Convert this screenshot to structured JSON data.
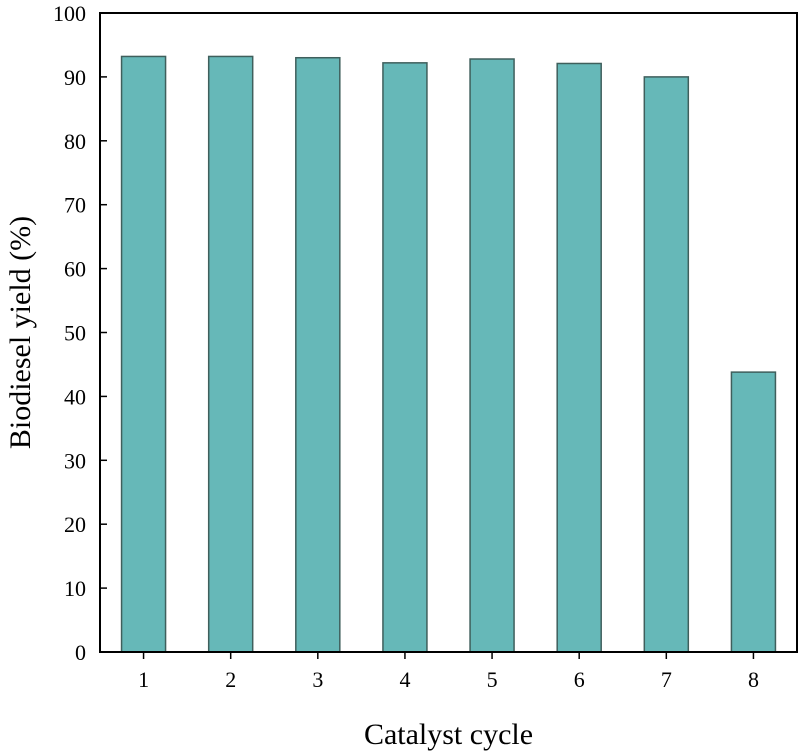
{
  "chart_data": {
    "type": "bar",
    "title": "",
    "xlabel": "Catalyst cycle",
    "ylabel": "Biodiesel yield (%)",
    "categories": [
      "1",
      "2",
      "3",
      "4",
      "5",
      "6",
      "7",
      "8"
    ],
    "values": [
      93.2,
      93.2,
      93.0,
      92.2,
      92.8,
      92.1,
      90.0,
      43.8
    ],
    "ylim": [
      0,
      100
    ],
    "yticks": [
      0,
      10,
      20,
      30,
      40,
      50,
      60,
      70,
      80,
      90,
      100
    ],
    "ytick_labels": [
      "0",
      "10",
      "20",
      "30",
      "40",
      "50",
      "60",
      "70",
      "80",
      "90",
      "100"
    ],
    "grid": false,
    "bar_color": "#66b8b8",
    "bar_edge_color": "#3f5f5c",
    "axis_color": "#000000"
  }
}
